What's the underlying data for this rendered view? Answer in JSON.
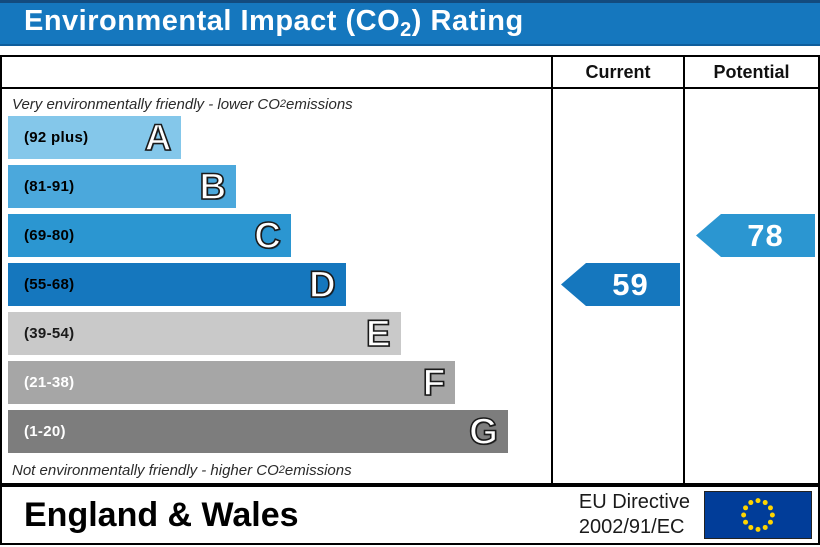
{
  "title": {
    "prefix": "Environmental Impact (CO",
    "sub": "2",
    "suffix": ") Rating"
  },
  "table": {
    "columns": {
      "current": "Current",
      "potential": "Potential"
    },
    "top_caption": {
      "prefix": "Very environmentally friendly - lower CO",
      "sub": "2",
      "suffix": " emissions"
    },
    "bottom_caption": {
      "prefix": "Not environmentally friendly - higher CO",
      "sub": "2",
      "suffix": " emissions"
    }
  },
  "chart_data": {
    "type": "bar",
    "title": "Environmental Impact (CO2) Rating",
    "bands": [
      {
        "letter": "A",
        "range_label": "(92 plus)",
        "range_min": 92,
        "range_max": 100,
        "width_pct": 32.3,
        "color": "#84C7EA",
        "label_color": "#000000"
      },
      {
        "letter": "B",
        "range_label": "(81-91)",
        "range_min": 81,
        "range_max": 91,
        "width_pct": 42.5,
        "color": "#4BA8DC",
        "label_color": "#000000"
      },
      {
        "letter": "C",
        "range_label": "(69-80)",
        "range_min": 69,
        "range_max": 80,
        "width_pct": 52.7,
        "color": "#2B96D1",
        "label_color": "#000000"
      },
      {
        "letter": "D",
        "range_label": "(55-68)",
        "range_min": 55,
        "range_max": 68,
        "width_pct": 62.9,
        "color": "#1577BE",
        "label_color": "#000000"
      },
      {
        "letter": "E",
        "range_label": "(39-54)",
        "range_min": 39,
        "range_max": 54,
        "width_pct": 73.1,
        "color": "#C9C9C9",
        "label_color": "#1a1a1a"
      },
      {
        "letter": "F",
        "range_label": "(21-38)",
        "range_min": 21,
        "range_max": 38,
        "width_pct": 83.3,
        "color": "#A6A6A6",
        "label_color": "#ffffff"
      },
      {
        "letter": "G",
        "range_label": "(1-20)",
        "range_min": 1,
        "range_max": 20,
        "width_pct": 93.1,
        "color": "#7D7D7D",
        "label_color": "#ffffff"
      }
    ],
    "ratings": {
      "current": {
        "value": 59,
        "band": "D",
        "arrow_color": "#1577BE"
      },
      "potential": {
        "value": 78,
        "band": "C",
        "arrow_color": "#2B96D1"
      }
    }
  },
  "footer": {
    "region": "England & Wales",
    "directive_line1": "EU Directive",
    "directive_line2": "2002/91/EC",
    "flag": {
      "name": "eu-flag",
      "bg": "#013D99",
      "star_color": "#FFD500",
      "star_count": 12
    }
  }
}
